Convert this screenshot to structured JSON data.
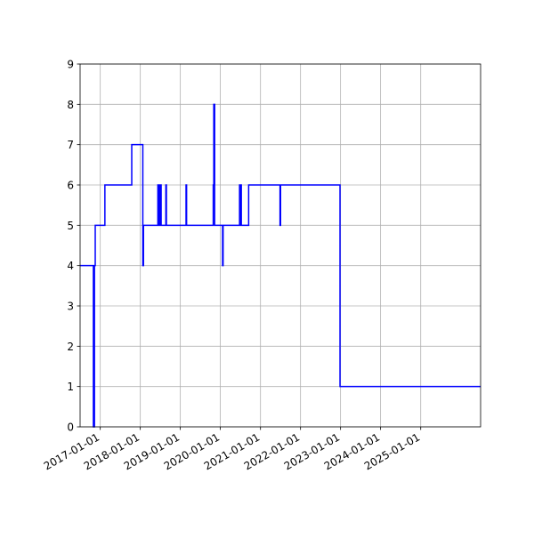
{
  "chart_data": {
    "type": "line",
    "title": "",
    "xlabel": "",
    "ylabel": "",
    "x_axis_type": "date",
    "xlim": [
      "2016-07-01",
      "2026-07-01"
    ],
    "ylim": [
      0,
      9
    ],
    "grid": true,
    "legend": "none",
    "x_ticks": [
      "2017-01-01",
      "2018-01-01",
      "2019-01-01",
      "2020-01-01",
      "2021-01-01",
      "2022-01-01",
      "2023-01-01",
      "2024-01-01",
      "2025-01-01"
    ],
    "y_ticks": [
      "0",
      "1",
      "2",
      "3",
      "4",
      "5",
      "6",
      "7",
      "8",
      "9"
    ],
    "series": [
      {
        "color": "#0000ff",
        "step": "post",
        "x": [
          "2016-07-01",
          "2016-10-30",
          "2016-11-09",
          "2016-11-16",
          "2017-02-12",
          "2017-02-17",
          "2017-10-15",
          "2017-10-20",
          "2018-01-24",
          "2018-01-30",
          "2018-02-06",
          "2018-06-10",
          "2018-06-14",
          "2018-06-20",
          "2018-06-24",
          "2018-06-30",
          "2018-07-10",
          "2018-08-22",
          "2018-08-27",
          "2019-02-22",
          "2019-02-27",
          "2019-10-28",
          "2019-11-02",
          "2019-11-10",
          "2019-11-15",
          "2020-01-21",
          "2020-01-26",
          "2020-06-24",
          "2020-06-29",
          "2020-07-06",
          "2020-07-10",
          "2020-09-15",
          "2021-06-28",
          "2021-07-03",
          "2022-12-27",
          "2026-07-01"
        ],
        "y": [
          4,
          0,
          4,
          5,
          6,
          6,
          7,
          7,
          4,
          5,
          5,
          6,
          5,
          6,
          5,
          6,
          5,
          6,
          5,
          6,
          5,
          6,
          8,
          5,
          5,
          4,
          5,
          6,
          5,
          6,
          5,
          6,
          5,
          6,
          1,
          1
        ]
      }
    ]
  }
}
